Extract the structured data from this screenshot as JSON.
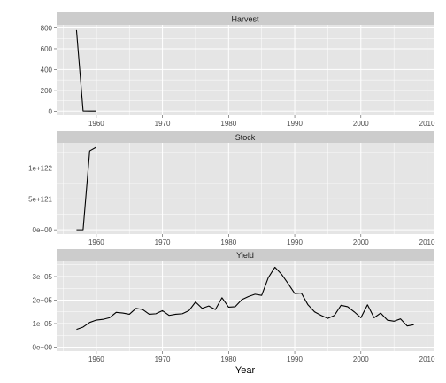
{
  "chart_data": {
    "type": "line",
    "xlabel": "Year",
    "xlim": [
      1954,
      2011
    ],
    "xticks": [
      "1960",
      "1970",
      "1980",
      "1990",
      "2000",
      "2010"
    ],
    "xtick_values": [
      1960,
      1970,
      1980,
      1990,
      2000,
      2010
    ],
    "grid": true,
    "colors": {
      "panel": "#e5e5e5",
      "strip": "#cccccc",
      "grid": "#ffffff",
      "line": "#000000"
    },
    "panels": [
      {
        "name": "Harvest",
        "ylim": [
          -40,
          830
        ],
        "yticks": [
          0,
          200,
          400,
          600,
          800
        ],
        "ytick_labels": [
          "0",
          "200",
          "400",
          "600",
          "800"
        ],
        "x": [
          1957,
          1958,
          1959,
          1960
        ],
        "y": [
          780,
          2,
          1,
          1
        ]
      },
      {
        "name": "Stock",
        "ylim": [
          -7e+120,
          1.41e+122
        ],
        "yticks": [
          0,
          5e+121,
          1e+122
        ],
        "ytick_labels": [
          "0e+00",
          "5e+121",
          "1e+122"
        ],
        "x": [
          1957,
          1958,
          1959,
          1960
        ],
        "y": [
          0,
          1e+119,
          1.28e+122,
          1.34e+122
        ]
      },
      {
        "name": "Yield",
        "ylim": [
          -17000,
          368000
        ],
        "yticks": [
          0,
          100000,
          200000,
          300000
        ],
        "ytick_labels": [
          "0e+00",
          "1e+05",
          "2e+05",
          "3e+05"
        ],
        "x": [
          1957,
          1958,
          1959,
          1960,
          1961,
          1962,
          1963,
          1964,
          1965,
          1966,
          1967,
          1968,
          1969,
          1970,
          1971,
          1972,
          1973,
          1974,
          1975,
          1976,
          1977,
          1978,
          1979,
          1980,
          1981,
          1982,
          1983,
          1984,
          1985,
          1986,
          1987,
          1988,
          1989,
          1990,
          1991,
          1992,
          1993,
          1994,
          1995,
          1996,
          1997,
          1998,
          1999,
          2000,
          2001,
          2002,
          2003,
          2004,
          2005,
          2006,
          2007,
          2008
        ],
        "y": [
          75000,
          85000,
          105000,
          115000,
          118000,
          125000,
          148000,
          145000,
          140000,
          165000,
          160000,
          140000,
          142000,
          155000,
          135000,
          140000,
          142000,
          155000,
          192000,
          165000,
          175000,
          160000,
          210000,
          170000,
          172000,
          202000,
          215000,
          225000,
          220000,
          295000,
          340000,
          310000,
          270000,
          228000,
          230000,
          180000,
          150000,
          135000,
          122000,
          135000,
          178000,
          172000,
          150000,
          125000,
          180000,
          125000,
          145000,
          115000,
          110000,
          120000,
          90000,
          95000
        ]
      }
    ]
  }
}
